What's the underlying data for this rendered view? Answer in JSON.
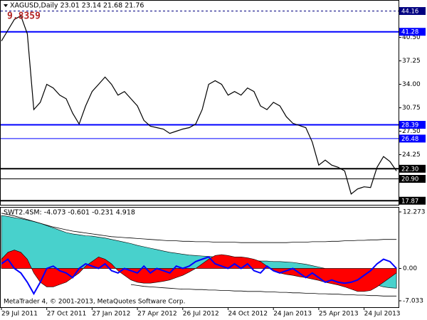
{
  "chart_data": [
    {
      "type": "line",
      "title": "XAGUSD,Daily  23.01 23.14 21.68 21.76",
      "annotation": "9.8359",
      "color": "#000000",
      "ylim": [
        17.6,
        44.7
      ],
      "yticks": [
        {
          "value": 40.5,
          "label": "40.50"
        },
        37.25,
        {
          "value": 34,
          "label": "34.00"
        },
        30.75,
        {
          "value": 27.5,
          "label": "27.50"
        },
        24.25
      ],
      "levels": [
        {
          "value": 44.16,
          "label": "44.16",
          "color": "#000080",
          "dashed": true,
          "thick": false
        },
        {
          "value": 41.28,
          "label": "41.28",
          "color": "#0000ff",
          "dashed": false,
          "thick": true
        },
        {
          "value": 28.39,
          "label": "28.39",
          "color": "#0000ff",
          "dashed": false,
          "thick": true
        },
        {
          "value": 26.48,
          "label": "26.48",
          "color": "#0000ff",
          "dashed": false,
          "thick": false
        },
        {
          "value": 22.3,
          "label": "22.30",
          "color": "#000000",
          "dashed": false,
          "thick": true
        },
        {
          "value": 20.9,
          "label": "20.90",
          "color": "#000000",
          "dashed": false,
          "thick": false
        },
        {
          "value": 17.87,
          "label": "17.87",
          "color": "#000000",
          "dashed": false,
          "thick": true
        }
      ],
      "values": [
        40,
        41.5,
        43,
        43.5,
        41,
        30.5,
        31.5,
        34,
        33.5,
        32.5,
        32,
        30,
        28.5,
        31,
        33,
        34,
        35,
        34,
        32.5,
        33,
        32,
        31,
        29,
        28.2,
        28,
        27.8,
        27.2,
        27.5,
        27.8,
        28,
        28.5,
        30.5,
        34,
        34.5,
        34,
        32.5,
        33,
        32.5,
        33.5,
        33,
        31,
        30.5,
        31.5,
        31,
        29.5,
        28.6,
        28.3,
        28,
        26,
        22.8,
        23.5,
        22.8,
        22.5,
        22,
        18.8,
        19.5,
        19.8,
        19.7,
        22.5,
        24,
        23.3,
        22
      ]
    },
    {
      "type": "area",
      "title": "SWT2.4SM: -4.073 -0.601 -0.231 4.918",
      "footer": "MetaTrader 4, © 2001-2013, MetaQuotes Software Corp.",
      "ylim": [
        -7.033,
        12.273
      ],
      "yticks": [
        12.273,
        {
          "value": 0,
          "label": "0.00"
        },
        -7.033
      ],
      "categories": [
        "29 Jul 2011",
        null,
        null,
        null,
        null,
        null,
        null,
        "27 Oct 2011",
        null,
        null,
        null,
        null,
        null,
        null,
        "27 Jan 2012",
        null,
        null,
        null,
        null,
        null,
        null,
        "27 Apr 2012",
        null,
        null,
        null,
        null,
        null,
        null,
        "26 Jul 2012",
        null,
        null,
        null,
        null,
        null,
        null,
        "24 Oct 2012",
        null,
        null,
        null,
        null,
        null,
        null,
        "24 Jan 2013",
        null,
        null,
        null,
        null,
        null,
        null,
        "25 Apr 2013",
        null,
        null,
        null,
        null,
        null,
        null,
        "24 Jul 2013",
        null,
        null,
        null,
        null,
        null
      ],
      "series": [
        {
          "type": "area",
          "color": "#48d1cc",
          "values": [
            11.5,
            11.3,
            11,
            10.8,
            10.5,
            10.2,
            9.8,
            9.3,
            8.8,
            8.3,
            7.8,
            7.5,
            7.3,
            7.1,
            7,
            6.8,
            6.6,
            6.3,
            6,
            5.7,
            5.4,
            5,
            4.7,
            4.4,
            4.1,
            3.8,
            3.5,
            3.3,
            3.1,
            2.9,
            2.8,
            2.7,
            2.6,
            2.5,
            2.3,
            2.1,
            2,
            1.9,
            1.8,
            1.7,
            1.6,
            1.6,
            1.5,
            1.5,
            1.4,
            1.3,
            1.1,
            0.9,
            0.6,
            0.3,
            0,
            -0.3,
            -0.7,
            -1.1,
            -1.6,
            -2.1,
            -2.6,
            -3.1,
            -3.6,
            -4,
            -4.2,
            -4.3
          ]
        },
        {
          "type": "area",
          "color": "#ff0000",
          "values": [
            2,
            3.5,
            4,
            3.5,
            2,
            -1,
            -3,
            -4,
            -4,
            -3.5,
            -3,
            -2,
            -1,
            0.5,
            1.5,
            2.5,
            2,
            1,
            -0.5,
            -1.5,
            -2.5,
            -3,
            -3.2,
            -3.2,
            -3,
            -2.8,
            -2.5,
            -2,
            -1.5,
            -0.8,
            0,
            1,
            2,
            2.8,
            3,
            2.8,
            2.5,
            2.5,
            2.3,
            2,
            1.5,
            0.5,
            -0.5,
            -1,
            -1.3,
            -1.5,
            -1.8,
            -2,
            -2.3,
            -2.6,
            -3,
            -3.3,
            -3.6,
            -4,
            -4.5,
            -5,
            -5,
            -4.8,
            -4,
            -3,
            -2,
            -1
          ]
        },
        {
          "type": "line",
          "color": "#000000",
          "values": [
            12,
            11.7,
            11.4,
            11,
            10.6,
            10.2,
            9.8,
            9.4,
            9,
            8.7,
            8.4,
            8.1,
            7.9,
            7.7,
            7.5,
            7.3,
            7.1,
            6.9,
            6.8,
            6.7,
            6.6,
            6.5,
            6.4,
            6.3,
            6.2,
            6.1,
            6,
            6,
            5.9,
            5.9,
            5.8,
            5.8,
            5.8,
            5.7,
            5.7,
            5.7,
            5.7,
            5.6,
            5.6,
            5.6,
            5.6,
            5.6,
            5.6,
            5.6,
            5.6,
            5.7,
            5.7,
            5.7,
            5.8,
            5.8,
            5.8,
            5.9,
            5.9,
            6,
            6,
            6.1,
            6.1,
            6.2,
            6.2,
            6.3,
            6.3,
            6.3
          ]
        },
        {
          "type": "line",
          "color": "#000000",
          "values": [
            null,
            null,
            null,
            null,
            null,
            null,
            null,
            null,
            null,
            null,
            null,
            null,
            null,
            null,
            null,
            null,
            null,
            null,
            null,
            null,
            -3.5,
            -3.7,
            -3.9,
            -4,
            -4.1,
            -4.2,
            -4.3,
            -4.4,
            -4.5,
            -4.5,
            -4.6,
            -4.6,
            -4.7,
            -4.7,
            -4.8,
            -4.8,
            -4.9,
            -4.9,
            -5,
            -5,
            -5,
            -5.1,
            -5.1,
            -5.2,
            -5.2,
            -5.3,
            -5.3,
            -5.4,
            -5.4,
            -5.5,
            -5.5,
            -5.6,
            -5.6,
            -5.7,
            -5.7,
            -5.8,
            -5.8,
            -5.9,
            -5.9,
            -6,
            -6,
            -6
          ]
        },
        {
          "type": "line",
          "color": "#0000ff",
          "values": [
            1,
            2,
            0,
            -1,
            -3,
            -5.5,
            -3,
            0,
            0.5,
            -0.5,
            -1,
            -2,
            0,
            1,
            0.5,
            0,
            1,
            -0.5,
            -1,
            0,
            -0.5,
            -1,
            0.5,
            -1,
            0,
            -0.5,
            -1,
            0.5,
            0,
            0.5,
            1.5,
            2,
            2.5,
            1,
            0.5,
            0,
            1,
            0,
            1,
            -0.5,
            -1,
            0.5,
            -0.5,
            -1,
            -0.5,
            0,
            -1,
            -2,
            -1,
            -2,
            -3,
            -2.5,
            -3,
            -3.2,
            -3,
            -2.5,
            -1.5,
            -0.5,
            1,
            2,
            1.5,
            0
          ]
        }
      ]
    }
  ]
}
